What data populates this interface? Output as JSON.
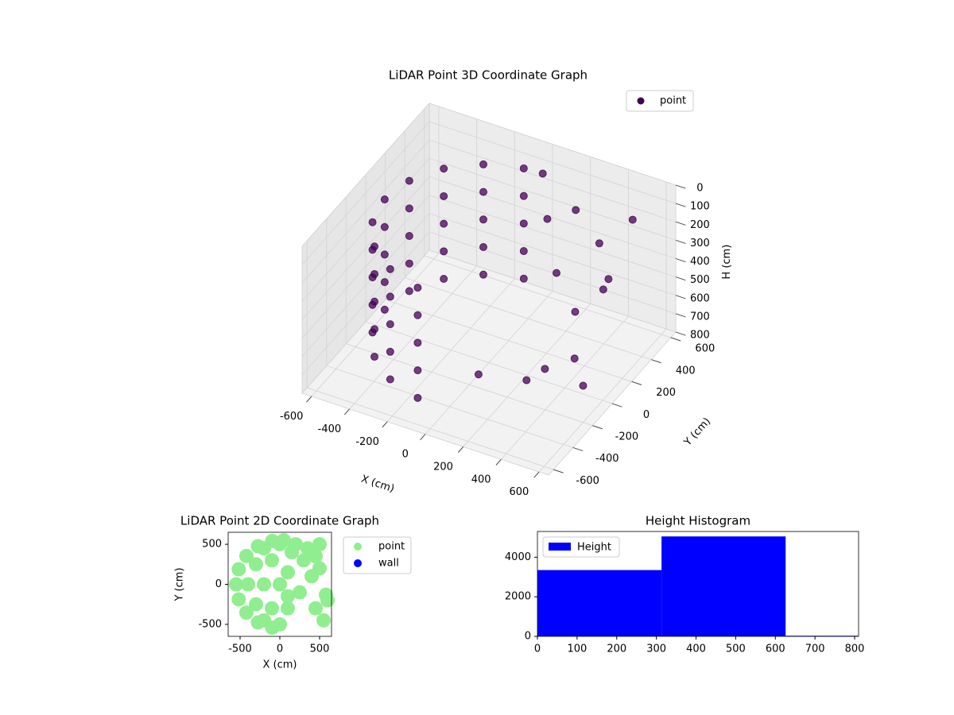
{
  "chart_data": [
    {
      "type": "scatter3d",
      "title": "LiDAR Point 3D Coordinate Graph",
      "xlabel": "X (cm)",
      "ylabel": "Y (cm)",
      "zlabel": "H (cm)",
      "series": [
        {
          "name": "point",
          "color": "#440154",
          "x": [
            -96,
            -275,
            -421,
            -517,
            -550,
            -517,
            -421,
            -275,
            -96,
            -96,
            -275,
            -421,
            -517,
            -550,
            -517,
            -421,
            -275,
            -96,
            -96,
            -275,
            -421,
            -517,
            -550,
            -517,
            -421,
            -275,
            -96,
            -96,
            -275,
            -421,
            -517,
            -550,
            -517,
            -421,
            -275,
            -96,
            -96,
            -275,
            -421,
            -517,
            -550,
            -517,
            -421,
            -275,
            -96,
            200,
            350,
            450,
            500,
            300,
            150,
            400,
            250,
            100,
            450,
            500,
            0,
            50,
            600
          ],
          "y": [
            542,
            476,
            354,
            188,
            0,
            -188,
            -354,
            -476,
            -542,
            542,
            476,
            354,
            188,
            0,
            -188,
            -354,
            -476,
            -542,
            542,
            476,
            354,
            188,
            0,
            -188,
            -354,
            -476,
            -542,
            542,
            476,
            354,
            188,
            0,
            -188,
            -354,
            -476,
            -542,
            542,
            476,
            354,
            188,
            0,
            -188,
            -354,
            -476,
            -542,
            500,
            450,
            350,
            200,
            300,
            400,
            100,
            -100,
            -300,
            -300,
            500,
            550,
            500,
            -200
          ],
          "values": [
            100,
            100,
            100,
            100,
            100,
            100,
            100,
            100,
            100,
            250,
            250,
            250,
            250,
            250,
            250,
            250,
            250,
            250,
            400,
            400,
            400,
            400,
            400,
            400,
            400,
            400,
            400,
            550,
            550,
            550,
            550,
            550,
            550,
            550,
            550,
            550,
            700,
            700,
            700,
            700,
            700,
            700,
            700,
            700,
            700,
            200,
            300,
            400,
            350,
            600,
            500,
            700,
            750,
            650,
            500,
            150,
            100,
            300,
            600
          ]
        }
      ],
      "xlim": [
        -650,
        650
      ],
      "ylim": [
        -650,
        650
      ],
      "zlim": [
        0,
        800
      ],
      "z_inverted": true,
      "xticks": [
        -600,
        -400,
        -200,
        0,
        200,
        400,
        600
      ],
      "yticks": [
        -600,
        -400,
        -200,
        0,
        200,
        400,
        600
      ],
      "zticks": [
        0,
        100,
        200,
        300,
        400,
        500,
        600,
        700,
        800
      ],
      "grid": true,
      "legend": "upper right"
    },
    {
      "type": "scatter",
      "title": "LiDAR Point 2D Coordinate Graph",
      "xlabel": "X (cm)",
      "ylabel": "Y (cm)",
      "series": [
        {
          "name": "point",
          "color": "#90ee90",
          "x": [
            -96,
            -275,
            -421,
            -517,
            -550,
            -517,
            -421,
            -275,
            -96,
            -400,
            -300,
            -300,
            -200,
            -100,
            -100,
            0,
            -200,
            -200,
            100,
            100,
            0,
            0,
            200,
            350,
            450,
            500,
            300,
            150,
            400,
            250,
            100,
            450,
            500,
            50,
            600,
            550,
            580
          ],
          "values": [
            542,
            476,
            354,
            188,
            0,
            -188,
            -354,
            -476,
            -542,
            0,
            250,
            -250,
            0,
            300,
            -300,
            0,
            450,
            -450,
            150,
            -150,
            500,
            -500,
            500,
            450,
            350,
            200,
            300,
            400,
            100,
            -100,
            -300,
            -300,
            500,
            550,
            -200,
            -450,
            -130
          ]
        },
        {
          "name": "wall",
          "color": "#0000ff",
          "x": [],
          "values": []
        }
      ],
      "xlim": [
        -650,
        650
      ],
      "ylim": [
        -650,
        650
      ],
      "xticks": [
        -500,
        0,
        500
      ],
      "yticks": [
        -500,
        0,
        500
      ],
      "legend": "outside right"
    },
    {
      "type": "histogram",
      "title": "Height Histogram",
      "bins": [
        0,
        313,
        626,
        808
      ],
      "series": [
        {
          "name": "Height",
          "color": "#0000ff",
          "values": [
            3350,
            5050,
            30
          ]
        }
      ],
      "xlim": [
        0,
        810
      ],
      "ylim": [
        0,
        5300
      ],
      "xticks": [
        0,
        100,
        200,
        300,
        400,
        500,
        600,
        700,
        800
      ],
      "yticks": [
        0,
        2000,
        4000
      ],
      "legend": "upper left"
    }
  ]
}
